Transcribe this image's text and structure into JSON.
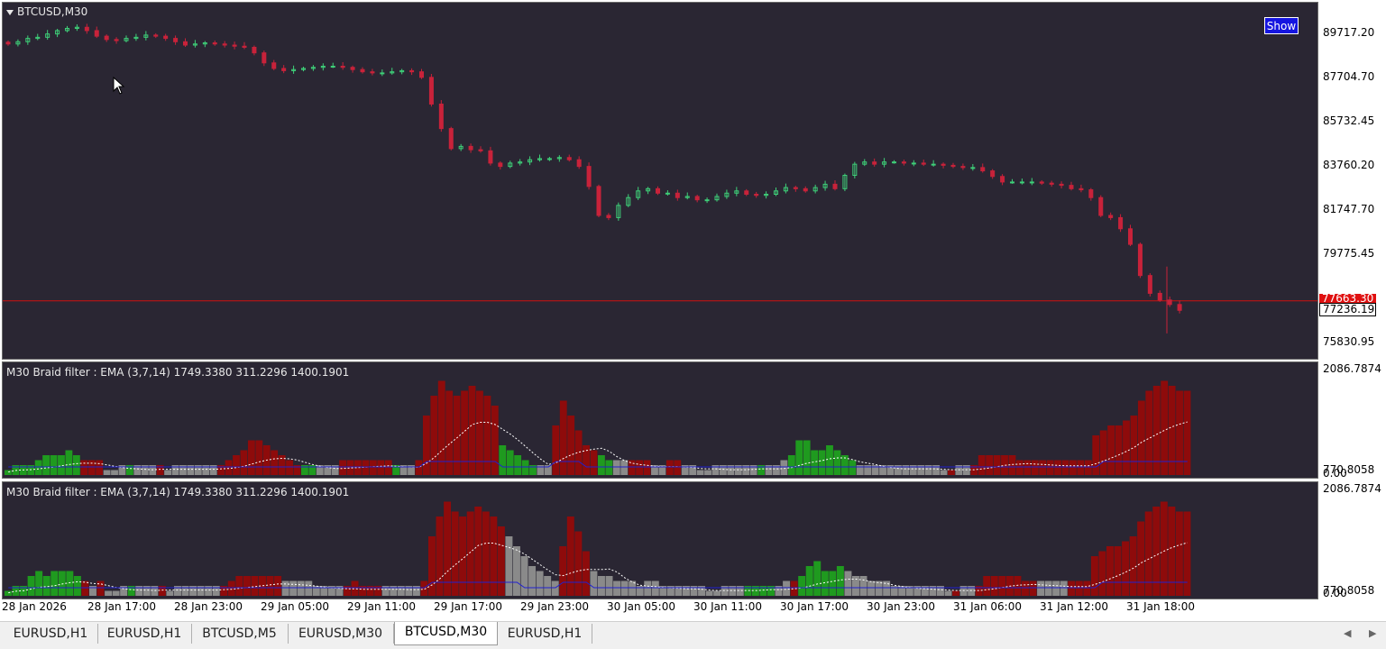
{
  "chart": {
    "symbol_title": "BTCUSD,M30",
    "show_button": "Show",
    "price_ticks": [
      "89717.20",
      "87704.70",
      "85732.45",
      "83760.20",
      "81747.70",
      "79775.45",
      "75830.95"
    ],
    "bid_label": "77663.30",
    "current_price_label": "77236.19",
    "colors": {
      "background": "#2a2633",
      "bull": "#3ecf78",
      "bear": "#c8223a",
      "price_line": "#d01010"
    }
  },
  "indicator1": {
    "title": "M30 Braid filter : EMA  (3,7,14) 1749.3380 311.2296 1400.1901",
    "top_tick": "2086.7874",
    "bottom_tick_a": "770.8058",
    "bottom_tick_b": "0.00"
  },
  "indicator2": {
    "title": "M30 Braid filter : EMA  (3,7,14) 1749.3380 311.2296 1400.1901",
    "top_tick": "2086.7874",
    "bottom_tick_a": "770.8058",
    "bottom_tick_b": "0.00"
  },
  "time_axis": [
    "28 Jan 2026",
    "28 Jan 17:00",
    "28 Jan 23:00",
    "29 Jan 05:00",
    "29 Jan 11:00",
    "29 Jan 17:00",
    "29 Jan 23:00",
    "30 Jan 05:00",
    "30 Jan 11:00",
    "30 Jan 17:00",
    "30 Jan 23:00",
    "31 Jan 06:00",
    "31 Jan 12:00",
    "31 Jan 18:00"
  ],
  "tabs": [
    {
      "label": "EURUSD,H1",
      "active": false
    },
    {
      "label": "EURUSD,H1",
      "active": false
    },
    {
      "label": "BTCUSD,M5",
      "active": false
    },
    {
      "label": "EURUSD,M30",
      "active": false
    },
    {
      "label": "BTCUSD,M30",
      "active": true
    },
    {
      "label": "EURUSD,H1",
      "active": false
    }
  ],
  "chart_data": {
    "type": "candlestick",
    "ohlc_close_path": [
      89200,
      89300,
      89450,
      89500,
      89650,
      89800,
      89900,
      89950,
      89800,
      89550,
      89400,
      89350,
      89450,
      89500,
      89600,
      89550,
      89450,
      89300,
      89150,
      89200,
      89250,
      89200,
      89150,
      89100,
      89050,
      88800,
      88350,
      88100,
      88000,
      88050,
      88100,
      88150,
      88200,
      88200,
      88150,
      88050,
      87950,
      87900,
      87900,
      87950,
      88000,
      87950,
      87700,
      86500,
      85400,
      84500,
      84600,
      84450,
      84400,
      83850,
      83700,
      83850,
      83900,
      84000,
      84050,
      84050,
      84100,
      84000,
      83700,
      82800,
      81500,
      81400,
      81950,
      82300,
      82600,
      82700,
      82500,
      82500,
      82300,
      82350,
      82200,
      82200,
      82350,
      82500,
      82600,
      82450,
      82400,
      82450,
      82600,
      82750,
      82700,
      82600,
      82750,
      82900,
      82700,
      83300,
      83800,
      83900,
      83800,
      83900,
      83900,
      83850,
      83850,
      83800,
      83800,
      83750,
      83700,
      83650,
      83650,
      83500,
      83250,
      83000,
      83000,
      83000,
      83000,
      82950,
      82900,
      82850,
      82700,
      82650,
      82300,
      81500,
      81400,
      80900,
      80200,
      78800,
      78000,
      77700,
      77500,
      77236
    ],
    "ylim": [
      75830.95,
      89717.2
    ],
    "hist1": [
      [
        1,
        "g"
      ],
      [
        2,
        "g"
      ],
      [
        2,
        "g"
      ],
      [
        2,
        "g"
      ],
      [
        3,
        "g"
      ],
      [
        4,
        "g"
      ],
      [
        4,
        "g"
      ],
      [
        4,
        "g"
      ],
      [
        5,
        "g"
      ],
      [
        4,
        "g"
      ],
      [
        3,
        "r"
      ],
      [
        3,
        "r"
      ],
      [
        3,
        "r"
      ],
      [
        1,
        "n"
      ],
      [
        1,
        "n"
      ],
      [
        2,
        "n"
      ],
      [
        2,
        "g"
      ],
      [
        2,
        "n"
      ],
      [
        2,
        "n"
      ],
      [
        2,
        "n"
      ],
      [
        2,
        "r"
      ],
      [
        1,
        "n"
      ],
      [
        2,
        "n"
      ],
      [
        2,
        "n"
      ],
      [
        2,
        "n"
      ],
      [
        2,
        "n"
      ],
      [
        2,
        "n"
      ],
      [
        2,
        "n"
      ],
      [
        2,
        "r"
      ],
      [
        3,
        "r"
      ],
      [
        4,
        "r"
      ],
      [
        5,
        "r"
      ],
      [
        7,
        "r"
      ],
      [
        7,
        "r"
      ],
      [
        6,
        "r"
      ],
      [
        5,
        "r"
      ],
      [
        4,
        "r"
      ],
      [
        3,
        "r"
      ],
      [
        2,
        "r"
      ],
      [
        2,
        "g"
      ],
      [
        2,
        "g"
      ],
      [
        2,
        "n"
      ],
      [
        2,
        "n"
      ],
      [
        2,
        "n"
      ],
      [
        3,
        "r"
      ],
      [
        3,
        "r"
      ],
      [
        3,
        "r"
      ],
      [
        3,
        "r"
      ],
      [
        3,
        "r"
      ],
      [
        3,
        "r"
      ],
      [
        3,
        "r"
      ],
      [
        2,
        "g"
      ],
      [
        2,
        "n"
      ],
      [
        2,
        "n"
      ],
      [
        3,
        "r"
      ],
      [
        12,
        "r"
      ],
      [
        16,
        "r"
      ],
      [
        19,
        "r"
      ],
      [
        17,
        "r"
      ],
      [
        16,
        "r"
      ],
      [
        17,
        "r"
      ],
      [
        18,
        "r"
      ],
      [
        17,
        "r"
      ],
      [
        16,
        "r"
      ],
      [
        14,
        "r"
      ],
      [
        6,
        "g"
      ],
      [
        5,
        "g"
      ],
      [
        4,
        "g"
      ],
      [
        3,
        "g"
      ],
      [
        2,
        "g"
      ],
      [
        2,
        "n"
      ],
      [
        2,
        "n"
      ],
      [
        10,
        "r"
      ],
      [
        15,
        "r"
      ],
      [
        12,
        "r"
      ],
      [
        9,
        "r"
      ],
      [
        6,
        "r"
      ],
      [
        5,
        "r"
      ],
      [
        4,
        "g"
      ],
      [
        3,
        "g"
      ],
      [
        3,
        "n"
      ],
      [
        3,
        "n"
      ],
      [
        3,
        "r"
      ],
      [
        3,
        "r"
      ],
      [
        3,
        "r"
      ],
      [
        2,
        "n"
      ],
      [
        2,
        "n"
      ],
      [
        3,
        "r"
      ],
      [
        3,
        "r"
      ],
      [
        2,
        "n"
      ],
      [
        2,
        "n"
      ],
      [
        1,
        "n"
      ],
      [
        1,
        "n"
      ],
      [
        2,
        "n"
      ],
      [
        2,
        "n"
      ],
      [
        2,
        "n"
      ],
      [
        2,
        "n"
      ],
      [
        2,
        "n"
      ],
      [
        2,
        "n"
      ],
      [
        2,
        "g"
      ],
      [
        2,
        "n"
      ],
      [
        2,
        "n"
      ],
      [
        3,
        "n"
      ],
      [
        4,
        "g"
      ],
      [
        7,
        "g"
      ],
      [
        7,
        "g"
      ],
      [
        5,
        "g"
      ],
      [
        5,
        "g"
      ],
      [
        6,
        "g"
      ],
      [
        5,
        "g"
      ],
      [
        4,
        "g"
      ],
      [
        3,
        "g"
      ],
      [
        2,
        "n"
      ],
      [
        2,
        "n"
      ],
      [
        2,
        "n"
      ],
      [
        2,
        "n"
      ],
      [
        2,
        "n"
      ],
      [
        2,
        "n"
      ],
      [
        2,
        "n"
      ],
      [
        2,
        "n"
      ],
      [
        2,
        "n"
      ],
      [
        2,
        "n"
      ],
      [
        2,
        "n"
      ],
      [
        1,
        "n"
      ],
      [
        1,
        "r"
      ],
      [
        2,
        "n"
      ],
      [
        2,
        "n"
      ],
      [
        2,
        "r"
      ],
      [
        4,
        "r"
      ],
      [
        4,
        "r"
      ],
      [
        4,
        "r"
      ],
      [
        4,
        "r"
      ],
      [
        4,
        "r"
      ],
      [
        3,
        "r"
      ],
      [
        3,
        "r"
      ],
      [
        3,
        "r"
      ],
      [
        3,
        "r"
      ],
      [
        3,
        "r"
      ],
      [
        3,
        "r"
      ],
      [
        3,
        "r"
      ],
      [
        3,
        "r"
      ],
      [
        3,
        "r"
      ],
      [
        3,
        "r"
      ],
      [
        8,
        "r"
      ],
      [
        9,
        "r"
      ],
      [
        10,
        "r"
      ],
      [
        10,
        "r"
      ],
      [
        11,
        "r"
      ],
      [
        12,
        "r"
      ],
      [
        15,
        "r"
      ],
      [
        17,
        "r"
      ],
      [
        18,
        "r"
      ],
      [
        19,
        "r"
      ],
      [
        18,
        "r"
      ],
      [
        17,
        "r"
      ],
      [
        17,
        "r"
      ]
    ],
    "hist2": [
      [
        1,
        "g"
      ],
      [
        2,
        "g"
      ],
      [
        2,
        "g"
      ],
      [
        4,
        "g"
      ],
      [
        5,
        "g"
      ],
      [
        4,
        "g"
      ],
      [
        5,
        "g"
      ],
      [
        5,
        "g"
      ],
      [
        5,
        "g"
      ],
      [
        4,
        "g"
      ],
      [
        3,
        "r"
      ],
      [
        2,
        "n"
      ],
      [
        3,
        "r"
      ],
      [
        1,
        "n"
      ],
      [
        1,
        "n"
      ],
      [
        2,
        "n"
      ],
      [
        2,
        "g"
      ],
      [
        2,
        "n"
      ],
      [
        2,
        "n"
      ],
      [
        2,
        "n"
      ],
      [
        2,
        "r"
      ],
      [
        1,
        "n"
      ],
      [
        2,
        "n"
      ],
      [
        2,
        "n"
      ],
      [
        2,
        "n"
      ],
      [
        2,
        "n"
      ],
      [
        2,
        "n"
      ],
      [
        2,
        "n"
      ],
      [
        2,
        "r"
      ],
      [
        3,
        "r"
      ],
      [
        4,
        "r"
      ],
      [
        4,
        "r"
      ],
      [
        4,
        "r"
      ],
      [
        4,
        "r"
      ],
      [
        4,
        "r"
      ],
      [
        4,
        "r"
      ],
      [
        3,
        "n"
      ],
      [
        3,
        "n"
      ],
      [
        3,
        "n"
      ],
      [
        3,
        "n"
      ],
      [
        2,
        "n"
      ],
      [
        2,
        "n"
      ],
      [
        2,
        "n"
      ],
      [
        2,
        "n"
      ],
      [
        2,
        "r"
      ],
      [
        3,
        "r"
      ],
      [
        2,
        "r"
      ],
      [
        2,
        "r"
      ],
      [
        2,
        "r"
      ],
      [
        2,
        "n"
      ],
      [
        2,
        "n"
      ],
      [
        2,
        "n"
      ],
      [
        2,
        "n"
      ],
      [
        2,
        "n"
      ],
      [
        3,
        "r"
      ],
      [
        12,
        "r"
      ],
      [
        16,
        "r"
      ],
      [
        19,
        "r"
      ],
      [
        17,
        "r"
      ],
      [
        16,
        "r"
      ],
      [
        17,
        "r"
      ],
      [
        18,
        "r"
      ],
      [
        17,
        "r"
      ],
      [
        16,
        "r"
      ],
      [
        14,
        "r"
      ],
      [
        12,
        "n"
      ],
      [
        10,
        "n"
      ],
      [
        8,
        "n"
      ],
      [
        6,
        "n"
      ],
      [
        5,
        "n"
      ],
      [
        4,
        "n"
      ],
      [
        3,
        "n"
      ],
      [
        10,
        "r"
      ],
      [
        16,
        "r"
      ],
      [
        13,
        "r"
      ],
      [
        9,
        "r"
      ],
      [
        5,
        "n"
      ],
      [
        4,
        "n"
      ],
      [
        4,
        "n"
      ],
      [
        3,
        "n"
      ],
      [
        3,
        "n"
      ],
      [
        3,
        "n"
      ],
      [
        2,
        "n"
      ],
      [
        3,
        "n"
      ],
      [
        3,
        "n"
      ],
      [
        2,
        "n"
      ],
      [
        2,
        "n"
      ],
      [
        2,
        "n"
      ],
      [
        2,
        "n"
      ],
      [
        2,
        "n"
      ],
      [
        2,
        "n"
      ],
      [
        1,
        "n"
      ],
      [
        1,
        "n"
      ],
      [
        2,
        "n"
      ],
      [
        2,
        "n"
      ],
      [
        2,
        "n"
      ],
      [
        2,
        "g"
      ],
      [
        2,
        "g"
      ],
      [
        2,
        "g"
      ],
      [
        2,
        "g"
      ],
      [
        2,
        "n"
      ],
      [
        3,
        "n"
      ],
      [
        3,
        "r"
      ],
      [
        4,
        "g"
      ],
      [
        6,
        "g"
      ],
      [
        7,
        "g"
      ],
      [
        5,
        "g"
      ],
      [
        5,
        "g"
      ],
      [
        6,
        "g"
      ],
      [
        5,
        "n"
      ],
      [
        4,
        "n"
      ],
      [
        4,
        "n"
      ],
      [
        3,
        "n"
      ],
      [
        3,
        "n"
      ],
      [
        3,
        "n"
      ],
      [
        2,
        "n"
      ],
      [
        2,
        "n"
      ],
      [
        2,
        "n"
      ],
      [
        2,
        "n"
      ],
      [
        2,
        "n"
      ],
      [
        2,
        "n"
      ],
      [
        2,
        "n"
      ],
      [
        1,
        "n"
      ],
      [
        1,
        "r"
      ],
      [
        2,
        "n"
      ],
      [
        2,
        "n"
      ],
      [
        2,
        "r"
      ],
      [
        4,
        "r"
      ],
      [
        4,
        "r"
      ],
      [
        4,
        "r"
      ],
      [
        4,
        "r"
      ],
      [
        4,
        "r"
      ],
      [
        3,
        "r"
      ],
      [
        3,
        "r"
      ],
      [
        3,
        "n"
      ],
      [
        3,
        "n"
      ],
      [
        3,
        "n"
      ],
      [
        3,
        "n"
      ],
      [
        3,
        "r"
      ],
      [
        3,
        "r"
      ],
      [
        3,
        "r"
      ],
      [
        8,
        "r"
      ],
      [
        9,
        "r"
      ],
      [
        10,
        "r"
      ],
      [
        10,
        "r"
      ],
      [
        11,
        "r"
      ],
      [
        12,
        "r"
      ],
      [
        15,
        "r"
      ],
      [
        17,
        "r"
      ],
      [
        18,
        "r"
      ],
      [
        19,
        "r"
      ],
      [
        18,
        "r"
      ],
      [
        17,
        "r"
      ],
      [
        17,
        "r"
      ]
    ]
  }
}
